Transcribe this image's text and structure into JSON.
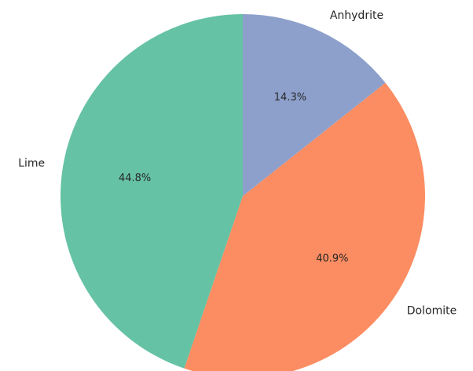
{
  "chart_data": {
    "type": "pie",
    "categories": [
      "Lime",
      "Dolomite",
      "Anhydrite"
    ],
    "values": [
      44.8,
      40.9,
      14.3
    ],
    "value_labels": [
      "44.8%",
      "40.9%",
      "14.3%"
    ],
    "colors": [
      "#66c2a5",
      "#fc8d62",
      "#8da0cb"
    ],
    "start_angle": 90
  }
}
